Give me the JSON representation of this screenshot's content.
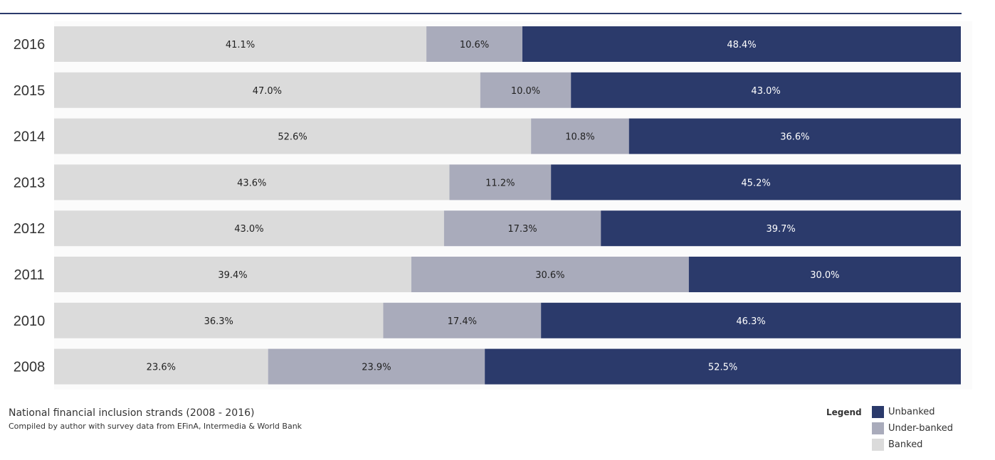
{
  "chart_data": {
    "type": "bar",
    "orientation": "horizontal",
    "stacked": true,
    "percent_stacked": true,
    "categories": [
      "2016",
      "2015",
      "2014",
      "2013",
      "2012",
      "2011",
      "2010",
      "2008"
    ],
    "series": [
      {
        "name": "Banked",
        "color": "#dbdbdb",
        "label_color": "#222222",
        "values": [
          41.1,
          47.0,
          52.6,
          43.6,
          43.0,
          39.4,
          36.3,
          23.6
        ],
        "labels": [
          "41.1%",
          "47.0%",
          "52.6%",
          "43.6%",
          "43.0%",
          "39.4%",
          "36.3%",
          "23.6%"
        ]
      },
      {
        "name": "Under-banked",
        "color": "#a9abbb",
        "label_color": "#222222",
        "values": [
          10.6,
          10.0,
          10.8,
          11.2,
          17.3,
          30.6,
          17.4,
          23.9
        ],
        "labels": [
          "10.6%",
          "10.0%",
          "10.8%",
          "11.2%",
          "17.3%",
          "30.6%",
          "17.4%",
          "23.9%"
        ]
      },
      {
        "name": "Unbanked",
        "color": "#2b3a6b",
        "label_color": "#ffffff",
        "values": [
          48.4,
          43.0,
          36.6,
          45.2,
          39.7,
          30.0,
          46.3,
          52.5
        ],
        "labels": [
          "48.4%",
          "43.0%",
          "36.6%",
          "45.2%",
          "39.7%",
          "30.0%",
          "46.3%",
          "52.5%"
        ]
      }
    ],
    "title": "National financial inclusion strands (2008 - 2016)",
    "subtitle": "Compiled by author with survey data from EFinA, Intermedia & World Bank",
    "xlim": [
      0,
      100
    ],
    "grid": false,
    "legend_position": "bottom-right"
  },
  "caption": {
    "title": "National financial inclusion strands (2008 - 2016)",
    "source": "Compiled by author with survey data from EFinA, Intermedia & World Bank"
  },
  "legend": {
    "title": "Legend",
    "items": [
      {
        "label": "Unbanked",
        "color": "#2b3a6b"
      },
      {
        "label": "Under-banked",
        "color": "#a9abbb"
      },
      {
        "label": "Banked",
        "color": "#dbdbdb"
      }
    ]
  },
  "colors": {
    "rule": "#2b3a6b",
    "background": "#ffffff"
  }
}
